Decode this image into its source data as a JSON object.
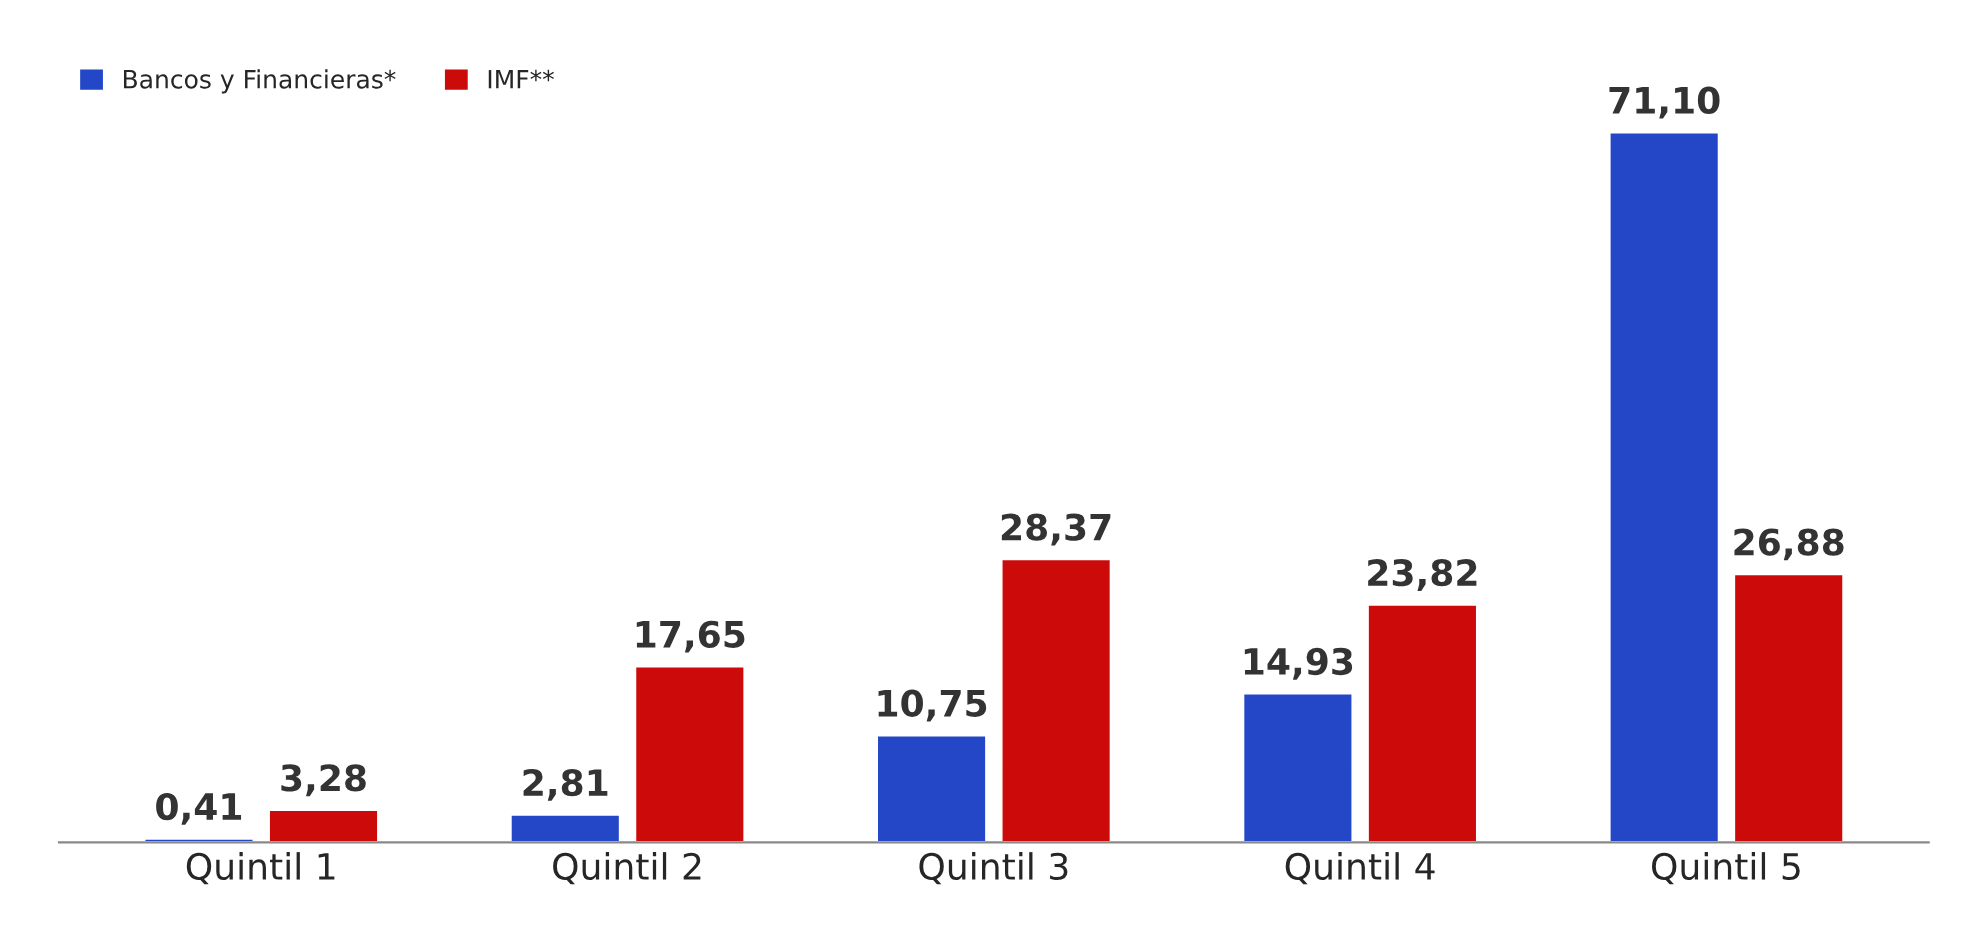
{
  "chart_data": {
    "type": "bar",
    "categories": [
      "Quintil 1",
      "Quintil 2",
      "Quintil 3",
      "Quintil 4",
      "Quintil 5"
    ],
    "series": [
      {
        "name": "Bancos y Financieras*",
        "color": "#2447c8",
        "values": [
          0.41,
          2.81,
          10.75,
          14.93,
          71.1
        ],
        "value_labels": [
          "0,41",
          "2,81",
          "10,75",
          "14,93",
          "71,10"
        ]
      },
      {
        "name": "IMF**",
        "color": "#cc0a0a",
        "values": [
          3.28,
          17.65,
          28.37,
          23.82,
          26.88
        ],
        "value_labels": [
          "3,28",
          "17,65",
          "28,37",
          "23,82",
          "26,88"
        ]
      }
    ],
    "legend": "top left",
    "grid": false,
    "tick_labels": "x"
  }
}
